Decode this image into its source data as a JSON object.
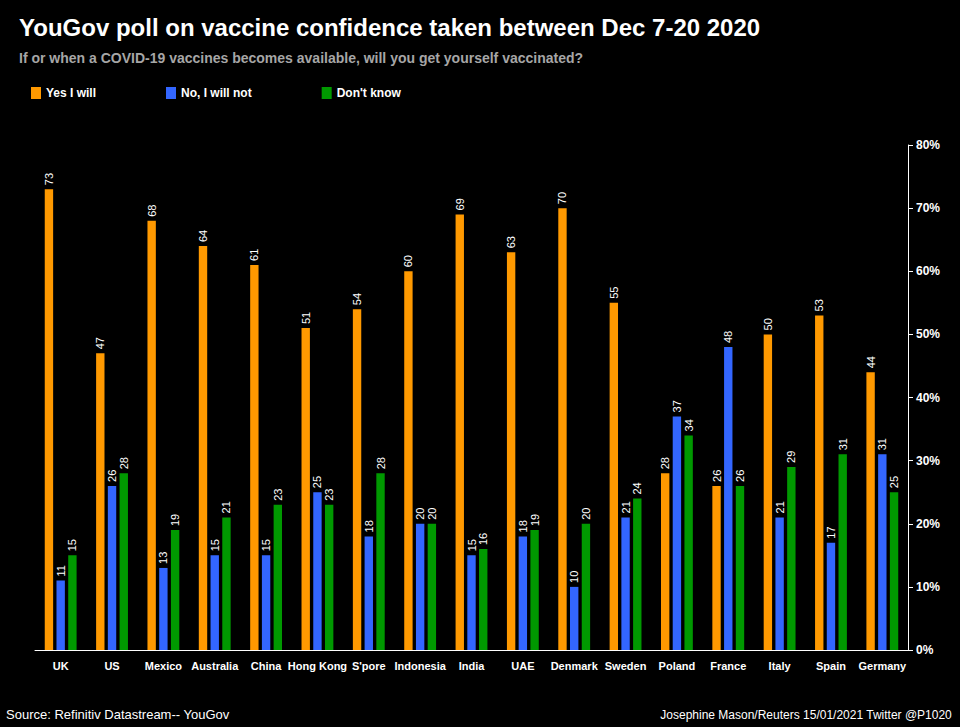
{
  "chart_data": {
    "type": "bar",
    "title": "YouGov poll on vaccine confidence taken between Dec 7-20 2020",
    "subtitle": "If or when a COVID-19 vaccines becomes available, will you get yourself vaccinated?",
    "annotations": [
      "Source: Refinitiv Datastream-- YouGov",
      "Josephine Mason/Reuters 15/01/2021 Twitter @P1020"
    ],
    "categories": [
      "UK",
      "US",
      "Mexico",
      "Australia",
      "China",
      "Hong Kong",
      "S'pore",
      "Indonesia",
      "India",
      "UAE",
      "Denmark",
      "Sweden",
      "Poland",
      "France",
      "Italy",
      "Spain",
      "Germany"
    ],
    "series": [
      {
        "name": "Yes I will",
        "color": "#ff9900",
        "values": [
          73,
          47,
          68,
          64,
          61,
          51,
          54,
          60,
          69,
          63,
          70,
          55,
          28,
          26,
          50,
          53,
          44
        ]
      },
      {
        "name": "No, I will not",
        "color": "#3366ff",
        "values": [
          11,
          26,
          13,
          15,
          15,
          25,
          18,
          20,
          15,
          18,
          10,
          21,
          37,
          48,
          21,
          17,
          31
        ]
      },
      {
        "name": "Don't know",
        "color": "#009900",
        "values": [
          15,
          28,
          19,
          21,
          23,
          23,
          28,
          20,
          16,
          19,
          20,
          24,
          34,
          26,
          29,
          31,
          25
        ]
      }
    ],
    "ylim": [
      0,
      80
    ],
    "yticks": [
      {
        "value": 0,
        "label": "0%"
      },
      {
        "value": 10,
        "label": "10%"
      },
      {
        "value": 20,
        "label": "20%"
      },
      {
        "value": 30,
        "label": "30%"
      },
      {
        "value": 40,
        "label": "40%"
      },
      {
        "value": 50,
        "label": "50%"
      },
      {
        "value": 60,
        "label": "60%"
      },
      {
        "value": 70,
        "label": "70%"
      },
      {
        "value": 80,
        "label": "80%"
      }
    ],
    "grid": false,
    "legend": "top-left",
    "data_labels": true
  }
}
